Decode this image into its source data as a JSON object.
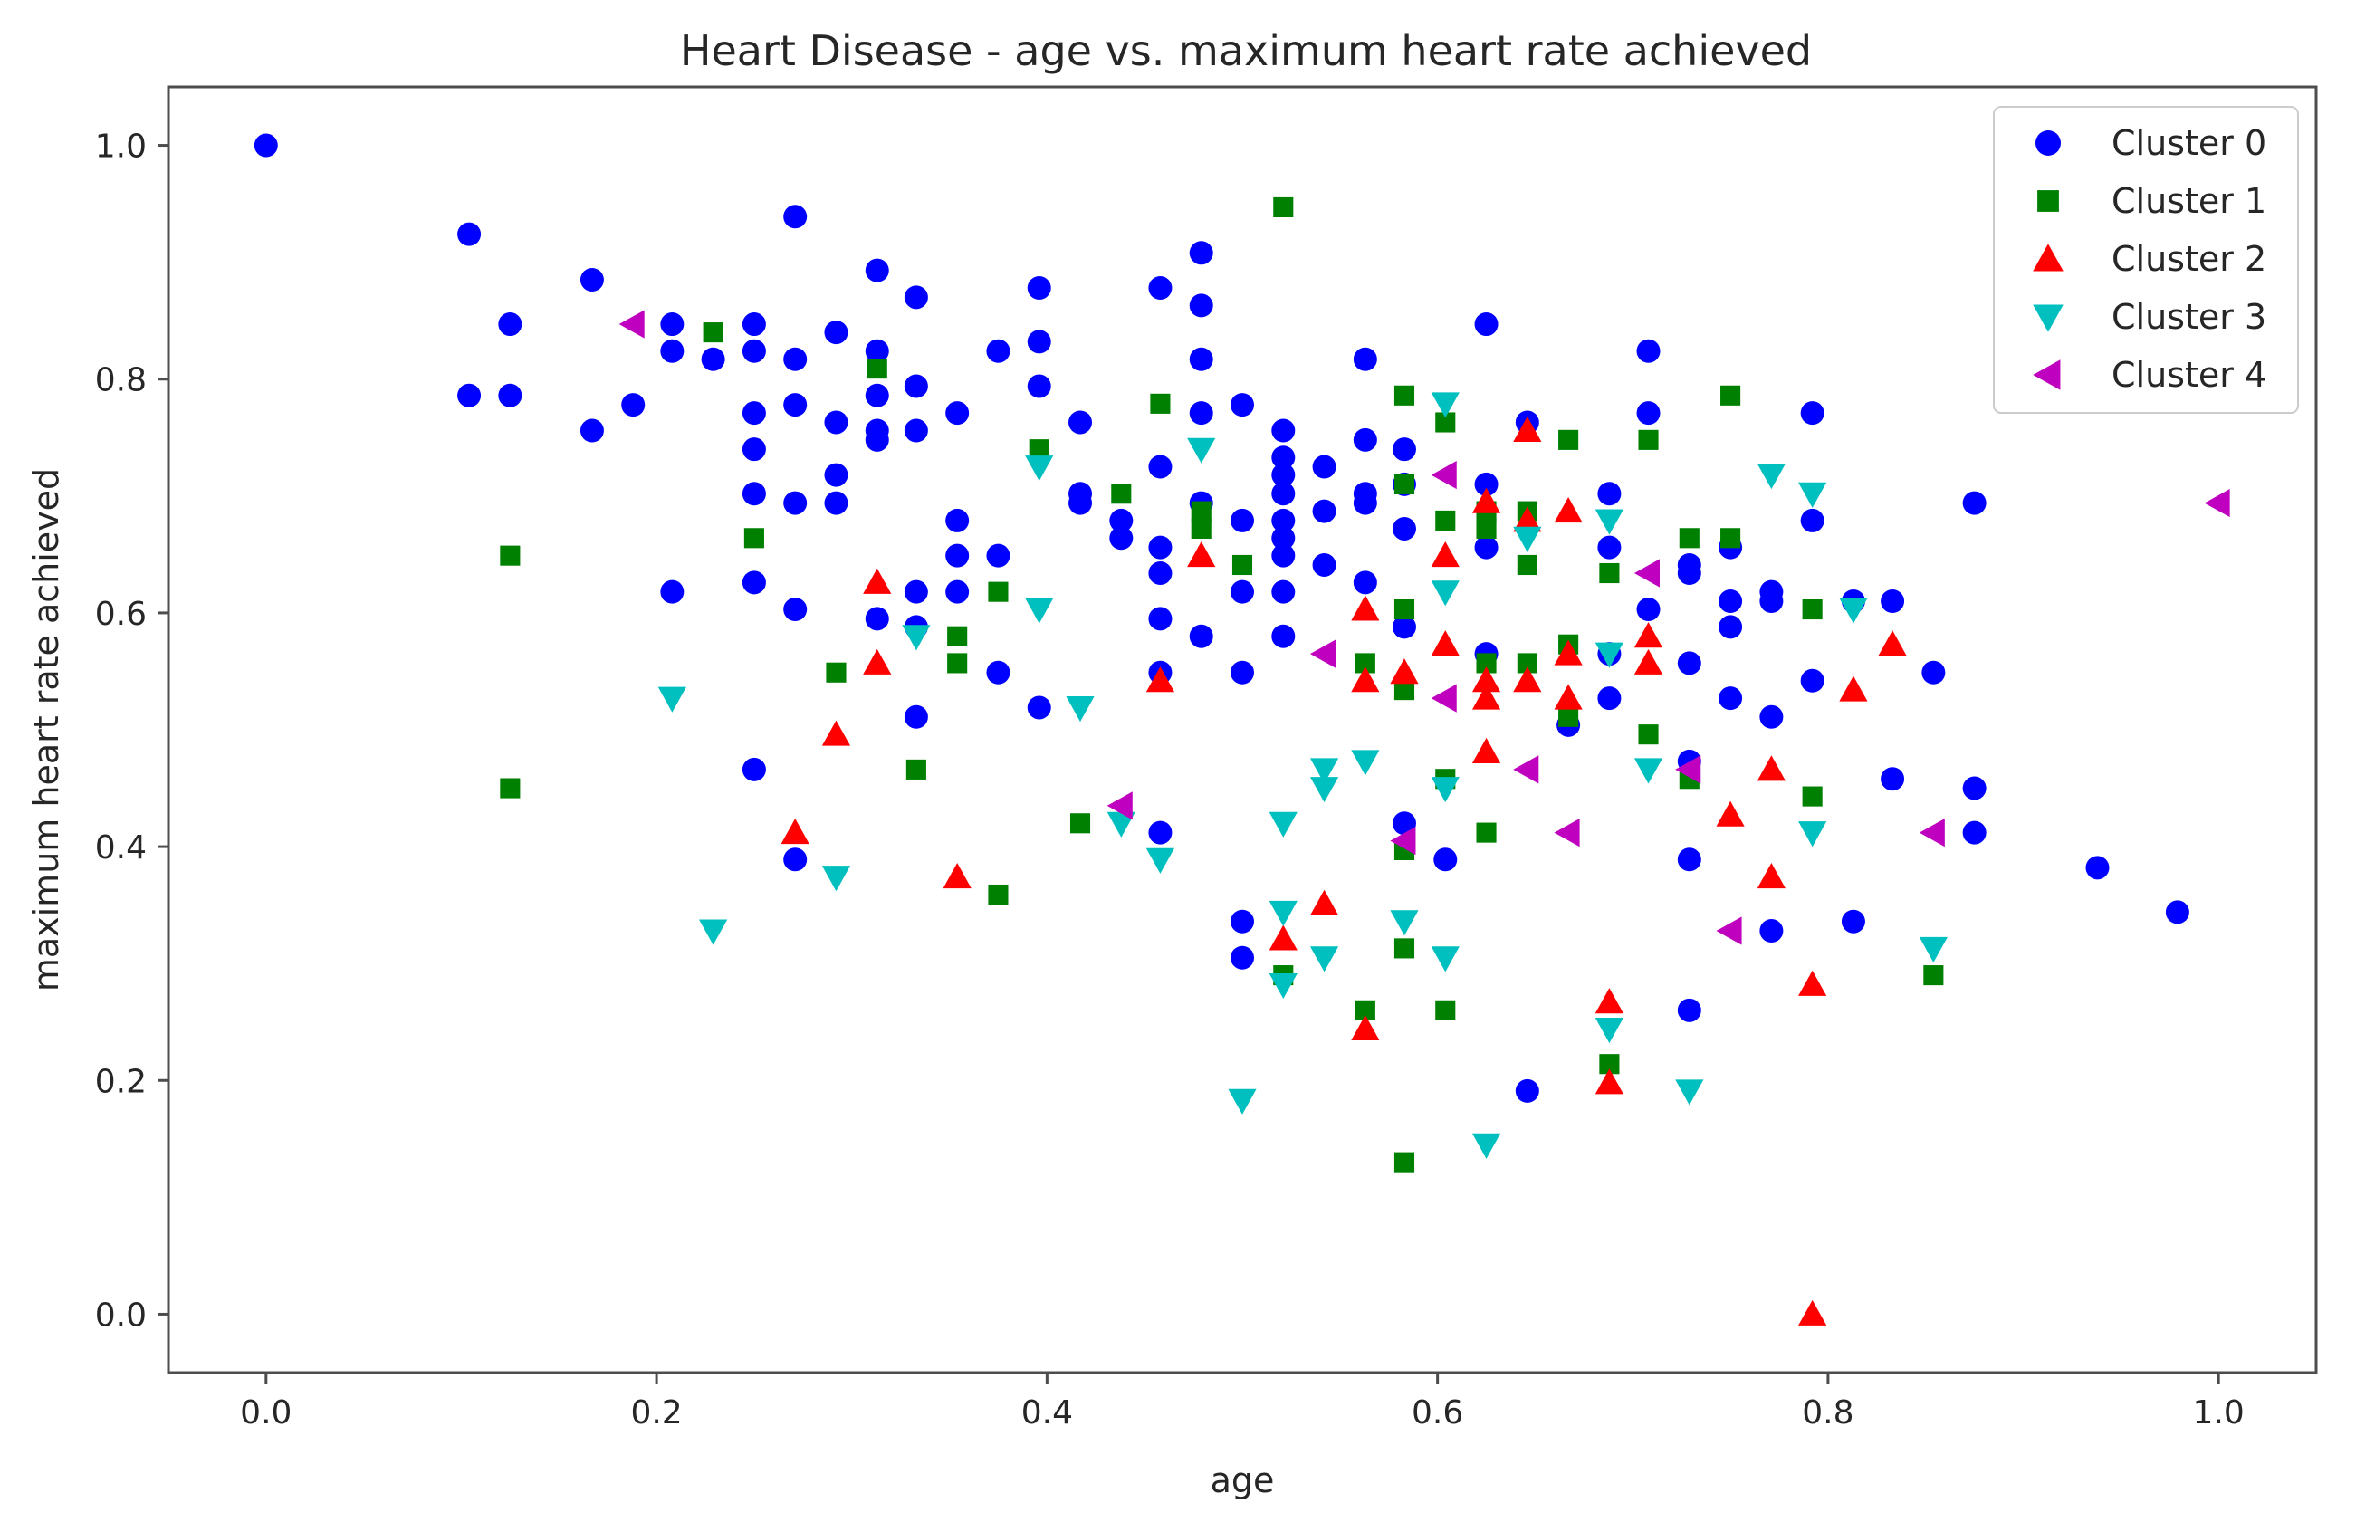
{
  "chart_data": {
    "type": "scatter",
    "title": "Heart Disease - age vs. maximum heart rate achieved",
    "xlabel": "age",
    "ylabel": "maximum heart rate achieved",
    "xlim": [
      -0.05,
      1.05
    ],
    "ylim": [
      -0.05,
      1.05
    ],
    "xticks": [
      "0.0",
      "0.2",
      "0.4",
      "0.6",
      "0.8",
      "1.0"
    ],
    "yticks": [
      "0.0",
      "0.2",
      "0.4",
      "0.6",
      "0.8",
      "1.0"
    ],
    "legend_position": "top-right",
    "series": [
      {
        "name": "Cluster 0",
        "color": "#0000ff",
        "marker": "circle",
        "points": [
          [
            0.0,
            1.0
          ],
          [
            0.104,
            0.924
          ],
          [
            0.104,
            0.786
          ],
          [
            0.125,
            0.847
          ],
          [
            0.125,
            0.786
          ],
          [
            0.167,
            0.885
          ],
          [
            0.167,
            0.756
          ],
          [
            0.188,
            0.778
          ],
          [
            0.208,
            0.847
          ],
          [
            0.208,
            0.824
          ],
          [
            0.208,
            0.618
          ],
          [
            0.229,
            0.817
          ],
          [
            0.25,
            0.847
          ],
          [
            0.25,
            0.824
          ],
          [
            0.25,
            0.771
          ],
          [
            0.25,
            0.74
          ],
          [
            0.25,
            0.702
          ],
          [
            0.25,
            0.626
          ],
          [
            0.25,
            0.466
          ],
          [
            0.271,
            0.939
          ],
          [
            0.271,
            0.817
          ],
          [
            0.271,
            0.778
          ],
          [
            0.271,
            0.694
          ],
          [
            0.271,
            0.603
          ],
          [
            0.271,
            0.389
          ],
          [
            0.292,
            0.84
          ],
          [
            0.292,
            0.763
          ],
          [
            0.292,
            0.718
          ],
          [
            0.292,
            0.694
          ],
          [
            0.313,
            0.893
          ],
          [
            0.313,
            0.824
          ],
          [
            0.313,
            0.786
          ],
          [
            0.313,
            0.756
          ],
          [
            0.313,
            0.748
          ],
          [
            0.313,
            0.595
          ],
          [
            0.333,
            0.87
          ],
          [
            0.333,
            0.794
          ],
          [
            0.333,
            0.756
          ],
          [
            0.333,
            0.618
          ],
          [
            0.333,
            0.588
          ],
          [
            0.333,
            0.511
          ],
          [
            0.354,
            0.771
          ],
          [
            0.354,
            0.679
          ],
          [
            0.354,
            0.649
          ],
          [
            0.354,
            0.618
          ],
          [
            0.375,
            0.824
          ],
          [
            0.375,
            0.649
          ],
          [
            0.375,
            0.549
          ],
          [
            0.396,
            0.878
          ],
          [
            0.396,
            0.832
          ],
          [
            0.396,
            0.794
          ],
          [
            0.396,
            0.519
          ],
          [
            0.417,
            0.763
          ],
          [
            0.417,
            0.702
          ],
          [
            0.417,
            0.694
          ],
          [
            0.438,
            0.679
          ],
          [
            0.438,
            0.664
          ],
          [
            0.458,
            0.878
          ],
          [
            0.458,
            0.725
          ],
          [
            0.458,
            0.656
          ],
          [
            0.458,
            0.634
          ],
          [
            0.458,
            0.595
          ],
          [
            0.458,
            0.549
          ],
          [
            0.458,
            0.412
          ],
          [
            0.479,
            0.908
          ],
          [
            0.479,
            0.863
          ],
          [
            0.479,
            0.817
          ],
          [
            0.479,
            0.771
          ],
          [
            0.479,
            0.694
          ],
          [
            0.479,
            0.58
          ],
          [
            0.5,
            0.778
          ],
          [
            0.5,
            0.679
          ],
          [
            0.5,
            0.618
          ],
          [
            0.5,
            0.549
          ],
          [
            0.5,
            0.336
          ],
          [
            0.5,
            0.305
          ],
          [
            0.521,
            0.756
          ],
          [
            0.521,
            0.733
          ],
          [
            0.521,
            0.718
          ],
          [
            0.521,
            0.702
          ],
          [
            0.521,
            0.679
          ],
          [
            0.521,
            0.664
          ],
          [
            0.521,
            0.649
          ],
          [
            0.521,
            0.618
          ],
          [
            0.521,
            0.58
          ],
          [
            0.542,
            0.725
          ],
          [
            0.542,
            0.687
          ],
          [
            0.542,
            0.641
          ],
          [
            0.563,
            0.817
          ],
          [
            0.563,
            0.748
          ],
          [
            0.563,
            0.702
          ],
          [
            0.563,
            0.694
          ],
          [
            0.563,
            0.626
          ],
          [
            0.583,
            0.74
          ],
          [
            0.583,
            0.71
          ],
          [
            0.583,
            0.672
          ],
          [
            0.583,
            0.588
          ],
          [
            0.583,
            0.42
          ],
          [
            0.604,
            0.389
          ],
          [
            0.625,
            0.847
          ],
          [
            0.625,
            0.71
          ],
          [
            0.625,
            0.656
          ],
          [
            0.625,
            0.565
          ],
          [
            0.646,
            0.763
          ],
          [
            0.646,
            0.191
          ],
          [
            0.667,
            0.504
          ],
          [
            0.688,
            0.702
          ],
          [
            0.688,
            0.656
          ],
          [
            0.688,
            0.565
          ],
          [
            0.688,
            0.527
          ],
          [
            0.708,
            0.824
          ],
          [
            0.708,
            0.771
          ],
          [
            0.708,
            0.603
          ],
          [
            0.729,
            0.641
          ],
          [
            0.729,
            0.634
          ],
          [
            0.729,
            0.557
          ],
          [
            0.729,
            0.473
          ],
          [
            0.729,
            0.389
          ],
          [
            0.729,
            0.26
          ],
          [
            0.75,
            0.656
          ],
          [
            0.75,
            0.61
          ],
          [
            0.75,
            0.588
          ],
          [
            0.75,
            0.527
          ],
          [
            0.771,
            0.618
          ],
          [
            0.771,
            0.61
          ],
          [
            0.771,
            0.511
          ],
          [
            0.771,
            0.328
          ],
          [
            0.792,
            0.771
          ],
          [
            0.792,
            0.679
          ],
          [
            0.792,
            0.542
          ],
          [
            0.813,
            0.61
          ],
          [
            0.813,
            0.336
          ],
          [
            0.833,
            0.61
          ],
          [
            0.833,
            0.458
          ],
          [
            0.854,
            0.549
          ],
          [
            0.875,
            0.694
          ],
          [
            0.875,
            0.45
          ],
          [
            0.875,
            0.412
          ],
          [
            0.938,
            0.382
          ],
          [
            0.979,
            0.344
          ]
        ]
      },
      {
        "name": "Cluster 1",
        "color": "#008000",
        "marker": "square",
        "points": [
          [
            0.125,
            0.649
          ],
          [
            0.125,
            0.45
          ],
          [
            0.229,
            0.84
          ],
          [
            0.25,
            0.664
          ],
          [
            0.292,
            0.549
          ],
          [
            0.313,
            0.809
          ],
          [
            0.333,
            0.466
          ],
          [
            0.354,
            0.58
          ],
          [
            0.354,
            0.557
          ],
          [
            0.375,
            0.618
          ],
          [
            0.375,
            0.359
          ],
          [
            0.396,
            0.74
          ],
          [
            0.417,
            0.42
          ],
          [
            0.438,
            0.702
          ],
          [
            0.458,
            0.779
          ],
          [
            0.479,
            0.687
          ],
          [
            0.479,
            0.672
          ],
          [
            0.5,
            0.641
          ],
          [
            0.521,
            0.947
          ],
          [
            0.521,
            0.29
          ],
          [
            0.563,
            0.557
          ],
          [
            0.563,
            0.26
          ],
          [
            0.583,
            0.786
          ],
          [
            0.583,
            0.71
          ],
          [
            0.583,
            0.603
          ],
          [
            0.583,
            0.534
          ],
          [
            0.583,
            0.397
          ],
          [
            0.583,
            0.313
          ],
          [
            0.583,
            0.13
          ],
          [
            0.604,
            0.763
          ],
          [
            0.604,
            0.679
          ],
          [
            0.604,
            0.458
          ],
          [
            0.604,
            0.26
          ],
          [
            0.625,
            0.687
          ],
          [
            0.625,
            0.672
          ],
          [
            0.625,
            0.557
          ],
          [
            0.625,
            0.412
          ],
          [
            0.646,
            0.687
          ],
          [
            0.646,
            0.641
          ],
          [
            0.646,
            0.557
          ],
          [
            0.667,
            0.748
          ],
          [
            0.667,
            0.573
          ],
          [
            0.667,
            0.511
          ],
          [
            0.688,
            0.634
          ],
          [
            0.688,
            0.214
          ],
          [
            0.708,
            0.748
          ],
          [
            0.708,
            0.496
          ],
          [
            0.729,
            0.664
          ],
          [
            0.729,
            0.458
          ],
          [
            0.75,
            0.786
          ],
          [
            0.75,
            0.664
          ],
          [
            0.792,
            0.603
          ],
          [
            0.792,
            0.443
          ],
          [
            0.854,
            0.29
          ]
        ]
      },
      {
        "name": "Cluster 2",
        "color": "#ff0000",
        "marker": "triangle-up",
        "points": [
          [
            0.271,
            0.412
          ],
          [
            0.292,
            0.496
          ],
          [
            0.313,
            0.626
          ],
          [
            0.313,
            0.557
          ],
          [
            0.354,
            0.374
          ],
          [
            0.458,
            0.542
          ],
          [
            0.479,
            0.649
          ],
          [
            0.521,
            0.321
          ],
          [
            0.542,
            0.351
          ],
          [
            0.563,
            0.603
          ],
          [
            0.563,
            0.542
          ],
          [
            0.563,
            0.244
          ],
          [
            0.583,
            0.549
          ],
          [
            0.604,
            0.649
          ],
          [
            0.604,
            0.573
          ],
          [
            0.625,
            0.695
          ],
          [
            0.625,
            0.542
          ],
          [
            0.625,
            0.527
          ],
          [
            0.625,
            0.481
          ],
          [
            0.646,
            0.756
          ],
          [
            0.646,
            0.679
          ],
          [
            0.646,
            0.542
          ],
          [
            0.667,
            0.687
          ],
          [
            0.667,
            0.565
          ],
          [
            0.667,
            0.527
          ],
          [
            0.688,
            0.267
          ],
          [
            0.688,
            0.198
          ],
          [
            0.708,
            0.58
          ],
          [
            0.708,
            0.557
          ],
          [
            0.75,
            0.427
          ],
          [
            0.771,
            0.466
          ],
          [
            0.771,
            0.374
          ],
          [
            0.792,
            0.282
          ],
          [
            0.792,
            0.0
          ],
          [
            0.813,
            0.534
          ],
          [
            0.833,
            0.573
          ]
        ]
      },
      {
        "name": "Cluster 3",
        "color": "#00bfbf",
        "marker": "triangle-down",
        "points": [
          [
            0.208,
            0.527
          ],
          [
            0.229,
            0.328
          ],
          [
            0.292,
            0.374
          ],
          [
            0.333,
            0.58
          ],
          [
            0.396,
            0.725
          ],
          [
            0.396,
            0.603
          ],
          [
            0.417,
            0.519
          ],
          [
            0.438,
            0.42
          ],
          [
            0.458,
            0.389
          ],
          [
            0.479,
            0.74
          ],
          [
            0.5,
            0.183
          ],
          [
            0.521,
            0.42
          ],
          [
            0.521,
            0.344
          ],
          [
            0.521,
            0.282
          ],
          [
            0.542,
            0.466
          ],
          [
            0.542,
            0.45
          ],
          [
            0.542,
            0.305
          ],
          [
            0.563,
            0.473
          ],
          [
            0.583,
            0.336
          ],
          [
            0.604,
            0.779
          ],
          [
            0.604,
            0.618
          ],
          [
            0.604,
            0.45
          ],
          [
            0.604,
            0.305
          ],
          [
            0.625,
            0.145
          ],
          [
            0.646,
            0.664
          ],
          [
            0.688,
            0.679
          ],
          [
            0.688,
            0.565
          ],
          [
            0.688,
            0.244
          ],
          [
            0.708,
            0.466
          ],
          [
            0.729,
            0.191
          ],
          [
            0.771,
            0.718
          ],
          [
            0.792,
            0.702
          ],
          [
            0.792,
            0.412
          ],
          [
            0.813,
            0.603
          ],
          [
            0.854,
            0.313
          ]
        ]
      },
      {
        "name": "Cluster 4",
        "color": "#bf00bf",
        "marker": "triangle-left",
        "points": [
          [
            0.188,
            0.847
          ],
          [
            0.438,
            0.435
          ],
          [
            0.542,
            0.565
          ],
          [
            0.583,
            0.405
          ],
          [
            0.604,
            0.718
          ],
          [
            0.604,
            0.527
          ],
          [
            0.646,
            0.466
          ],
          [
            0.667,
            0.412
          ],
          [
            0.708,
            0.634
          ],
          [
            0.729,
            0.466
          ],
          [
            0.75,
            0.328
          ],
          [
            0.854,
            0.412
          ],
          [
            1.0,
            0.694
          ]
        ]
      }
    ]
  }
}
